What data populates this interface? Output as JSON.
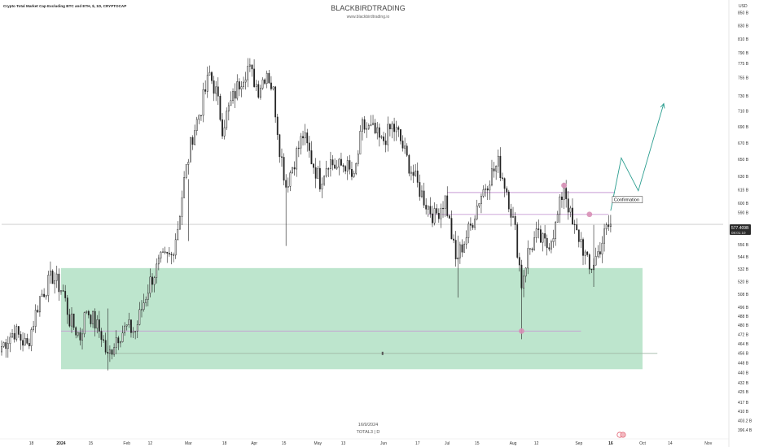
{
  "header": {
    "symbol": "Crypto Total Market Cap Excluding BTC and ETH, $, 1D, CRYPTOCAP",
    "watermark_title": "BLACKBIRDTRADING",
    "watermark_url": "www.blackbirdtrading.io",
    "currency": "USD"
  },
  "footer": {
    "date_label": "16/9/2024",
    "ticker_label": "TOTAL3 | D"
  },
  "price_badge": {
    "value": "577.409B",
    "countdown": "08:01:10"
  },
  "colors": {
    "candle": "#222222",
    "zone_fill": "#b2e0c4",
    "level_line": "#c79ad3",
    "marker": "#d88fb6",
    "projection": "#2a9d8f"
  },
  "chart_data": {
    "type": "candlestick",
    "title": "",
    "xlabel": "",
    "ylabel": "",
    "ylim": [
      390,
      860
    ],
    "y_scale": "log",
    "x_range": [
      "2023-12-04",
      "2024-11-08"
    ],
    "y_ticks": [
      "850 B",
      "830 B",
      "810 B",
      "790 B",
      "775 B",
      "755 B",
      "730 B",
      "710 B",
      "690 B",
      "670 B",
      "650 B",
      "630 B",
      "615 B",
      "600 B",
      "590 B",
      "568 B",
      "556 B",
      "544 B",
      "532 B",
      "520 B",
      "508 B",
      "496 B",
      "488 B",
      "480 B",
      "472 B",
      "464 B",
      "456 B",
      "448 B",
      "440 B",
      "432 B",
      "425 B",
      "417 B",
      "410 B",
      "403.2 B",
      "396.4 B"
    ],
    "x_ticks": [
      {
        "label": "18",
        "date": "2023-12-18",
        "bold": false
      },
      {
        "label": "2024",
        "date": "2024-01-01",
        "bold": true
      },
      {
        "label": "15",
        "date": "2024-01-15",
        "bold": false
      },
      {
        "label": "Feb",
        "date": "2024-02-01",
        "bold": false
      },
      {
        "label": "12",
        "date": "2024-02-12",
        "bold": false
      },
      {
        "label": "Mar",
        "date": "2024-03-01",
        "bold": false
      },
      {
        "label": "18",
        "date": "2024-03-18",
        "bold": false
      },
      {
        "label": "Apr",
        "date": "2024-04-01",
        "bold": false
      },
      {
        "label": "15",
        "date": "2024-04-15",
        "bold": false
      },
      {
        "label": "May",
        "date": "2024-05-01",
        "bold": false
      },
      {
        "label": "13",
        "date": "2024-05-13",
        "bold": false
      },
      {
        "label": "Jun",
        "date": "2024-06-01",
        "bold": false
      },
      {
        "label": "17",
        "date": "2024-06-17",
        "bold": false
      },
      {
        "label": "Jul",
        "date": "2024-07-01",
        "bold": false
      },
      {
        "label": "15",
        "date": "2024-07-15",
        "bold": false
      },
      {
        "label": "Aug",
        "date": "2024-08-01",
        "bold": false
      },
      {
        "label": "12",
        "date": "2024-08-12",
        "bold": false
      },
      {
        "label": "Sep",
        "date": "2024-09-01",
        "bold": false
      },
      {
        "label": "16",
        "date": "2024-09-16",
        "bold": true
      },
      {
        "label": "Oct",
        "date": "2024-10-01",
        "bold": false
      },
      {
        "label": "14",
        "date": "2024-10-14",
        "bold": false
      },
      {
        "label": "Nov",
        "date": "2024-11-01",
        "bold": false
      }
    ],
    "close_anchors": [
      {
        "date": "2023-12-04",
        "close": 462
      },
      {
        "date": "2023-12-10",
        "close": 475
      },
      {
        "date": "2023-12-16",
        "close": 462
      },
      {
        "date": "2023-12-22",
        "close": 505
      },
      {
        "date": "2023-12-28",
        "close": 525
      },
      {
        "date": "2024-01-02",
        "close": 510
      },
      {
        "date": "2024-01-05",
        "close": 485
      },
      {
        "date": "2024-01-10",
        "close": 470
      },
      {
        "date": "2024-01-13",
        "close": 495
      },
      {
        "date": "2024-01-20",
        "close": 472
      },
      {
        "date": "2024-01-23",
        "close": 452
      },
      {
        "date": "2024-01-27",
        "close": 470
      },
      {
        "date": "2024-02-01",
        "close": 478
      },
      {
        "date": "2024-02-05",
        "close": 475
      },
      {
        "date": "2024-02-08",
        "close": 495
      },
      {
        "date": "2024-02-12",
        "close": 520
      },
      {
        "date": "2024-02-17",
        "close": 540
      },
      {
        "date": "2024-02-22",
        "close": 545
      },
      {
        "date": "2024-02-25",
        "close": 575
      },
      {
        "date": "2024-02-28",
        "close": 625
      },
      {
        "date": "2024-03-03",
        "close": 680
      },
      {
        "date": "2024-03-07",
        "close": 715
      },
      {
        "date": "2024-03-11",
        "close": 760
      },
      {
        "date": "2024-03-14",
        "close": 735
      },
      {
        "date": "2024-03-17",
        "close": 690
      },
      {
        "date": "2024-03-21",
        "close": 720
      },
      {
        "date": "2024-03-26",
        "close": 755
      },
      {
        "date": "2024-03-29",
        "close": 770
      },
      {
        "date": "2024-04-03",
        "close": 740
      },
      {
        "date": "2024-04-07",
        "close": 765
      },
      {
        "date": "2024-04-10",
        "close": 735
      },
      {
        "date": "2024-04-13",
        "close": 665
      },
      {
        "date": "2024-04-16",
        "close": 620
      },
      {
        "date": "2024-04-20",
        "close": 650
      },
      {
        "date": "2024-04-24",
        "close": 680
      },
      {
        "date": "2024-04-28",
        "close": 650
      },
      {
        "date": "2024-05-02",
        "close": 625
      },
      {
        "date": "2024-05-06",
        "close": 650
      },
      {
        "date": "2024-05-10",
        "close": 640
      },
      {
        "date": "2024-05-14",
        "close": 645
      },
      {
        "date": "2024-05-18",
        "close": 625
      },
      {
        "date": "2024-05-22",
        "close": 690
      },
      {
        "date": "2024-05-27",
        "close": 685
      },
      {
        "date": "2024-05-31",
        "close": 670
      },
      {
        "date": "2024-06-05",
        "close": 690
      },
      {
        "date": "2024-06-08",
        "close": 680
      },
      {
        "date": "2024-06-12",
        "close": 650
      },
      {
        "date": "2024-06-17",
        "close": 620
      },
      {
        "date": "2024-06-21",
        "close": 600
      },
      {
        "date": "2024-06-25",
        "close": 585
      },
      {
        "date": "2024-06-30",
        "close": 605
      },
      {
        "date": "2024-07-05",
        "close": 540
      },
      {
        "date": "2024-07-08",
        "close": 555
      },
      {
        "date": "2024-07-12",
        "close": 575
      },
      {
        "date": "2024-07-16",
        "close": 605
      },
      {
        "date": "2024-07-21",
        "close": 630
      },
      {
        "date": "2024-07-25",
        "close": 645
      },
      {
        "date": "2024-07-29",
        "close": 615
      },
      {
        "date": "2024-08-02",
        "close": 570
      },
      {
        "date": "2024-08-05",
        "close": 518
      },
      {
        "date": "2024-08-08",
        "close": 548
      },
      {
        "date": "2024-08-12",
        "close": 565
      },
      {
        "date": "2024-08-17",
        "close": 555
      },
      {
        "date": "2024-08-21",
        "close": 575
      },
      {
        "date": "2024-08-25",
        "close": 620
      },
      {
        "date": "2024-08-29",
        "close": 575
      },
      {
        "date": "2024-09-02",
        "close": 560
      },
      {
        "date": "2024-09-06",
        "close": 530
      },
      {
        "date": "2024-09-10",
        "close": 548
      },
      {
        "date": "2024-09-14",
        "close": 572
      },
      {
        "date": "2024-09-16",
        "close": 577
      }
    ],
    "zones": [
      {
        "type": "demand",
        "from_date": "2024-01-01",
        "to_date": "2024-10-01",
        "high": 533,
        "low": 443
      }
    ],
    "levels": [
      {
        "price": 475,
        "from_date": "2024-01-01",
        "to_date": "2024-09-02",
        "color": "#c79ad3"
      },
      {
        "price": 456,
        "from_date": "2024-01-23",
        "to_date": "2024-10-08",
        "color": "#9fb7a6"
      },
      {
        "price": 612,
        "from_date": "2024-07-01",
        "to_date": "2024-09-18",
        "color": "#c79ad3"
      },
      {
        "price": 588,
        "from_date": "2024-06-22",
        "to_date": "2024-09-15",
        "color": "#c79ad3"
      },
      {
        "price": 577.4,
        "from_date": "2023-12-04",
        "to_date": "2024-11-08",
        "color": "#c9c9c9"
      }
    ],
    "markers": [
      {
        "date": "2024-08-05",
        "price": 475
      },
      {
        "date": "2024-08-25",
        "price": 620
      },
      {
        "date": "2024-09-06",
        "price": 588
      }
    ],
    "projection": [
      {
        "date": "2024-09-16",
        "price": 592
      },
      {
        "date": "2024-09-21",
        "price": 652
      },
      {
        "date": "2024-09-29",
        "price": 614
      },
      {
        "date": "2024-10-11",
        "price": 720
      }
    ],
    "annotation": {
      "text": "Confirmation",
      "date": "2024-09-16",
      "price": 604
    }
  }
}
